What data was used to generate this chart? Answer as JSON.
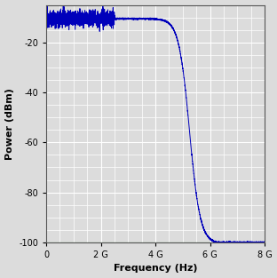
{
  "title": "",
  "xlabel": "Frequency (Hz)",
  "ylabel": "Power (dBm)",
  "xlim": [
    0,
    8000000000.0
  ],
  "ylim": [
    -100,
    -5
  ],
  "xticks": [
    0,
    2000000000.0,
    4000000000.0,
    6000000000.0,
    8000000000.0
  ],
  "xticklabels": [
    "0",
    "2 G",
    "4 G",
    "6 G",
    "8 G"
  ],
  "yticks": [
    -100,
    -80,
    -60,
    -40,
    -20
  ],
  "yticklabels": [
    "-100",
    "-80",
    "-60",
    "-40",
    "-20"
  ],
  "line_color": "#0000bb",
  "noise_floor_color": "#007700",
  "background_color": "#dcdcdc",
  "grid_color": "#ffffff",
  "flat_level": -10.5,
  "cutoff_freq": 2500000000.0,
  "noise_amplitude": 1.5,
  "floor_level": -100,
  "max_freq": 8000000000.0
}
